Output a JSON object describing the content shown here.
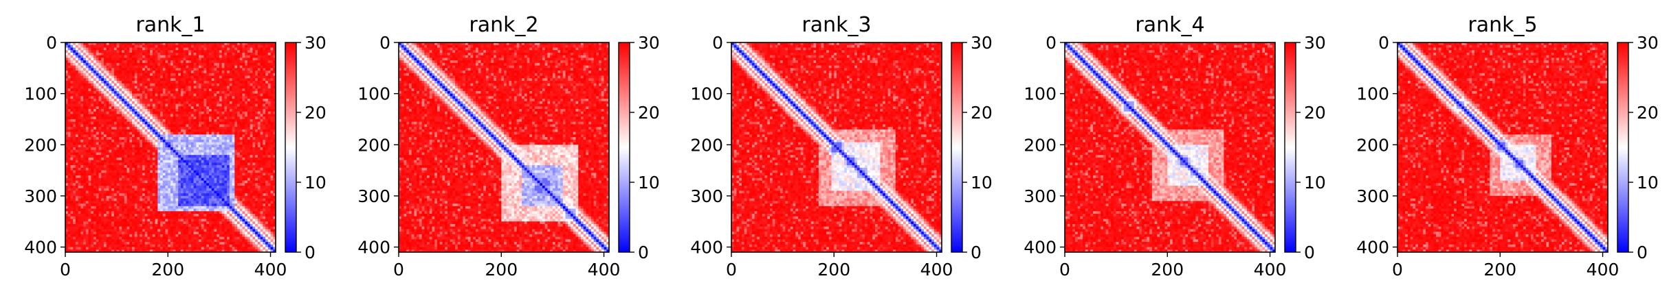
{
  "chart_data": [
    {
      "type": "heatmap",
      "title": "rank_1",
      "xlabel": "",
      "ylabel": "",
      "x_ticks": [
        0,
        200,
        400
      ],
      "y_ticks": [
        0,
        100,
        200,
        300,
        400
      ],
      "xlim": [
        0,
        410
      ],
      "ylim": [
        410,
        0
      ],
      "colorbar": {
        "min": 0,
        "max": 30,
        "ticks": [
          0,
          10,
          20,
          30
        ],
        "colormap": "bwr",
        "colors": [
          "#0000ff",
          "#ffffff",
          "#ff0000"
        ]
      },
      "matrix_size": 410,
      "diagonal_value": 0,
      "background_value": 30,
      "domains": [
        {
          "start": 180,
          "end": 330,
          "value": 8
        },
        {
          "start": 220,
          "end": 320,
          "value": 2
        }
      ],
      "contacts": [
        {
          "i": 200,
          "j": 200,
          "value": 0
        },
        {
          "i": 250,
          "j": 260,
          "value": 0
        },
        {
          "i": 270,
          "j": 285,
          "value": 0
        },
        {
          "i": 300,
          "j": 300,
          "value": 0
        }
      ]
    },
    {
      "type": "heatmap",
      "title": "rank_2",
      "xlabel": "",
      "ylabel": "",
      "x_ticks": [
        0,
        200,
        400
      ],
      "y_ticks": [
        0,
        100,
        200,
        300,
        400
      ],
      "xlim": [
        0,
        410
      ],
      "ylim": [
        410,
        0
      ],
      "colorbar": {
        "min": 0,
        "max": 30,
        "ticks": [
          0,
          10,
          20,
          30
        ],
        "colormap": "bwr",
        "colors": [
          "#0000ff",
          "#ffffff",
          "#ff0000"
        ]
      },
      "matrix_size": 410,
      "diagonal_value": 0,
      "background_value": 30,
      "domains": [
        {
          "start": 200,
          "end": 350,
          "value": 15
        },
        {
          "start": 240,
          "end": 320,
          "value": 8
        }
      ],
      "contacts": [
        {
          "i": 270,
          "j": 285,
          "value": 2
        },
        {
          "i": 290,
          "j": 275,
          "value": 2
        },
        {
          "i": 330,
          "j": 340,
          "value": 6
        }
      ]
    },
    {
      "type": "heatmap",
      "title": "rank_3",
      "xlabel": "",
      "ylabel": "",
      "x_ticks": [
        0,
        200,
        400
      ],
      "y_ticks": [
        0,
        100,
        200,
        300,
        400
      ],
      "xlim": [
        0,
        410
      ],
      "ylim": [
        410,
        0
      ],
      "colorbar": {
        "min": 0,
        "max": 30,
        "ticks": [
          0,
          10,
          20,
          30
        ],
        "colormap": "bwr",
        "colors": [
          "#0000ff",
          "#ffffff",
          "#ff0000"
        ]
      },
      "matrix_size": 410,
      "diagonal_value": 0,
      "background_value": 30,
      "domains": [
        {
          "start": 170,
          "end": 320,
          "value": 18
        },
        {
          "start": 195,
          "end": 290,
          "value": 12
        }
      ],
      "contacts": [
        {
          "i": 200,
          "j": 210,
          "value": 2
        },
        {
          "i": 230,
          "j": 235,
          "value": 2
        },
        {
          "i": 260,
          "j": 250,
          "value": 6
        }
      ]
    },
    {
      "type": "heatmap",
      "title": "rank_4",
      "xlabel": "",
      "ylabel": "",
      "x_ticks": [
        0,
        200,
        400
      ],
      "y_ticks": [
        0,
        100,
        200,
        300,
        400
      ],
      "xlim": [
        0,
        410
      ],
      "ylim": [
        410,
        0
      ],
      "colorbar": {
        "min": 0,
        "max": 30,
        "ticks": [
          0,
          10,
          20,
          30
        ],
        "colormap": "bwr",
        "colors": [
          "#0000ff",
          "#ffffff",
          "#ff0000"
        ]
      },
      "matrix_size": 410,
      "diagonal_value": 0,
      "background_value": 30,
      "domains": [
        {
          "start": 170,
          "end": 310,
          "value": 18
        },
        {
          "start": 200,
          "end": 280,
          "value": 12
        }
      ],
      "contacts": [
        {
          "i": 120,
          "j": 130,
          "value": 5
        },
        {
          "i": 230,
          "j": 235,
          "value": 2
        },
        {
          "i": 250,
          "j": 255,
          "value": 6
        }
      ]
    },
    {
      "type": "heatmap",
      "title": "rank_5",
      "xlabel": "",
      "ylabel": "",
      "x_ticks": [
        0,
        200,
        400
      ],
      "y_ticks": [
        0,
        100,
        200,
        300,
        400
      ],
      "xlim": [
        0,
        410
      ],
      "ylim": [
        410,
        0
      ],
      "colorbar": {
        "min": 0,
        "max": 30,
        "ticks": [
          0,
          10,
          20,
          30
        ],
        "colormap": "bwr",
        "colors": [
          "#0000ff",
          "#ffffff",
          "#ff0000"
        ]
      },
      "matrix_size": 410,
      "diagonal_value": 0,
      "background_value": 30,
      "domains": [
        {
          "start": 180,
          "end": 300,
          "value": 18
        },
        {
          "start": 200,
          "end": 270,
          "value": 12
        }
      ],
      "contacts": [
        {
          "i": 120,
          "j": 125,
          "value": 6
        },
        {
          "i": 200,
          "j": 205,
          "value": 2
        },
        {
          "i": 235,
          "j": 240,
          "value": 2
        }
      ]
    }
  ]
}
